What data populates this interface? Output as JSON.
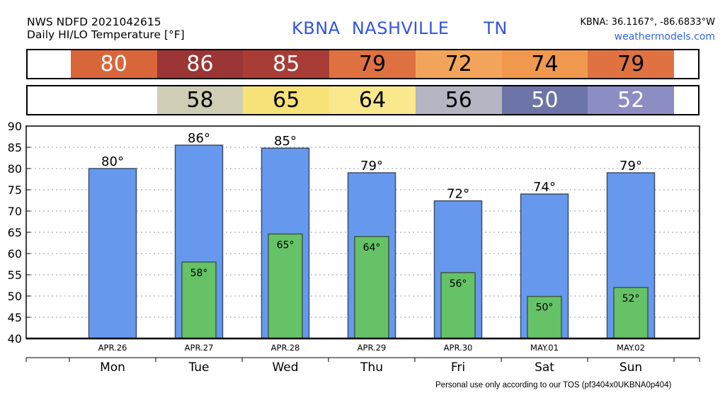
{
  "header": {
    "product": "NWS NDFD 2021042615",
    "subtitle": "Daily HI/LO Temperature [°F]",
    "station_title": "KBNA  NASHVILLE      TN",
    "coords": "KBNA: 36.1167°, -86.6833°W",
    "site": "weathermodels.com"
  },
  "high_strip": [
    {
      "value": "",
      "color": "#ffffff",
      "text_color": "#000000"
    },
    {
      "value": "80",
      "color": "#d9663a",
      "text_color": "#ffffff"
    },
    {
      "value": "86",
      "color": "#9c3535",
      "text_color": "#ffffff"
    },
    {
      "value": "85",
      "color": "#a83d38",
      "text_color": "#ffffff"
    },
    {
      "value": "79",
      "color": "#df7140",
      "text_color": "#000000"
    },
    {
      "value": "72",
      "color": "#f2a55a",
      "text_color": "#000000"
    },
    {
      "value": "74",
      "color": "#f0994e",
      "text_color": "#000000"
    },
    {
      "value": "79",
      "color": "#e07242",
      "text_color": "#000000"
    },
    {
      "value": "",
      "color": "#ffffff",
      "text_color": "#000000"
    }
  ],
  "low_strip": [
    {
      "value": "",
      "color": "#ffffff",
      "text_color": "#000000"
    },
    {
      "value": "",
      "color": "#ffffff",
      "text_color": "#000000"
    },
    {
      "value": "58",
      "color": "#cfceb4",
      "text_color": "#000000"
    },
    {
      "value": "65",
      "color": "#f7e277",
      "text_color": "#000000"
    },
    {
      "value": "64",
      "color": "#f9e88c",
      "text_color": "#000000"
    },
    {
      "value": "56",
      "color": "#b5b5c3",
      "text_color": "#000000"
    },
    {
      "value": "50",
      "color": "#6d74a7",
      "text_color": "#ffffff"
    },
    {
      "value": "52",
      "color": "#8c8dc3",
      "text_color": "#ffffff"
    },
    {
      "value": "",
      "color": "#ffffff",
      "text_color": "#000000"
    }
  ],
  "chart_data": {
    "type": "bar",
    "categories": [
      "Mon",
      "Tue",
      "Wed",
      "Thu",
      "Fri",
      "Sat",
      "Sun"
    ],
    "dates": [
      "APR.26",
      "APR.27",
      "APR.28",
      "APR.29",
      "APR.30",
      "MAY.01",
      "MAY.02"
    ],
    "series": [
      {
        "name": "",
        "color": "#6699ee",
        "values": [
          80,
          85.5,
          84.8,
          79,
          72.4,
          74,
          79
        ],
        "labels": [
          "80°",
          "86°",
          "85°",
          "79°",
          "72°",
          "74°",
          "79°"
        ]
      },
      {
        "name": "",
        "color": "#66c266",
        "values": [
          null,
          58,
          64.6,
          64,
          55.5,
          49.9,
          52
        ],
        "labels": [
          "",
          "58°",
          "65°",
          "64°",
          "56°",
          "50°",
          "52°"
        ]
      }
    ],
    "ylim": [
      40,
      90
    ],
    "yticks": [
      40,
      45,
      50,
      55,
      60,
      65,
      70,
      75,
      80,
      85,
      90
    ],
    "grid": true
  },
  "footer": "Personal use only according to our TOS (pf3404x0UKBNA0p404)"
}
